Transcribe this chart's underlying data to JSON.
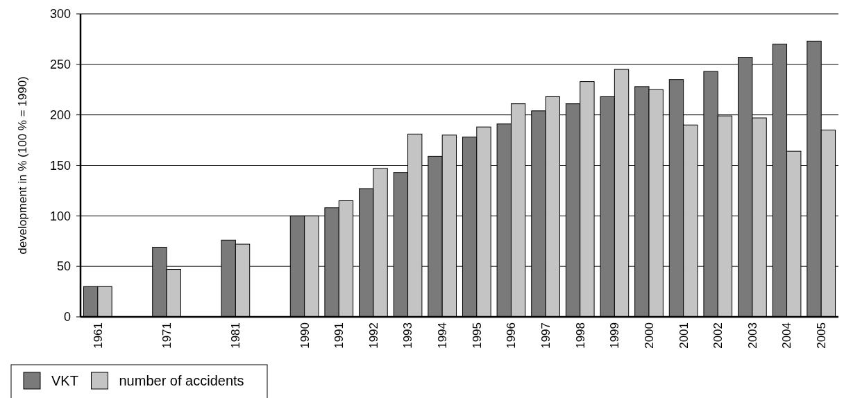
{
  "chart_data": {
    "type": "bar",
    "ylabel": "development in %  (100 % = 1990)",
    "categories": [
      "1961",
      null,
      "1971",
      null,
      "1981",
      null,
      "1990",
      "1991",
      "1992",
      "1993",
      "1994",
      "1995",
      "1996",
      "1997",
      "1998",
      "1999",
      "2000",
      "2001",
      "2002",
      "2003",
      "2004",
      "2005"
    ],
    "series": [
      {
        "name": "VKT",
        "color": "#7a7a7a",
        "values": [
          30,
          null,
          69,
          null,
          76,
          null,
          100,
          108,
          127,
          143,
          159,
          178,
          191,
          204,
          211,
          218,
          228,
          235,
          243,
          257,
          270,
          273
        ]
      },
      {
        "name": "number of accidents",
        "color": "#c4c4c4",
        "values": [
          30,
          null,
          47,
          null,
          72,
          null,
          100,
          115,
          147,
          181,
          180,
          188,
          211,
          218,
          233,
          245,
          225,
          190,
          199,
          197,
          164,
          185
        ]
      }
    ],
    "ylim": [
      0,
      300
    ],
    "yticks": [
      0,
      50,
      100,
      150,
      200,
      250,
      300
    ],
    "grid": "y",
    "legend": "bottom left"
  }
}
